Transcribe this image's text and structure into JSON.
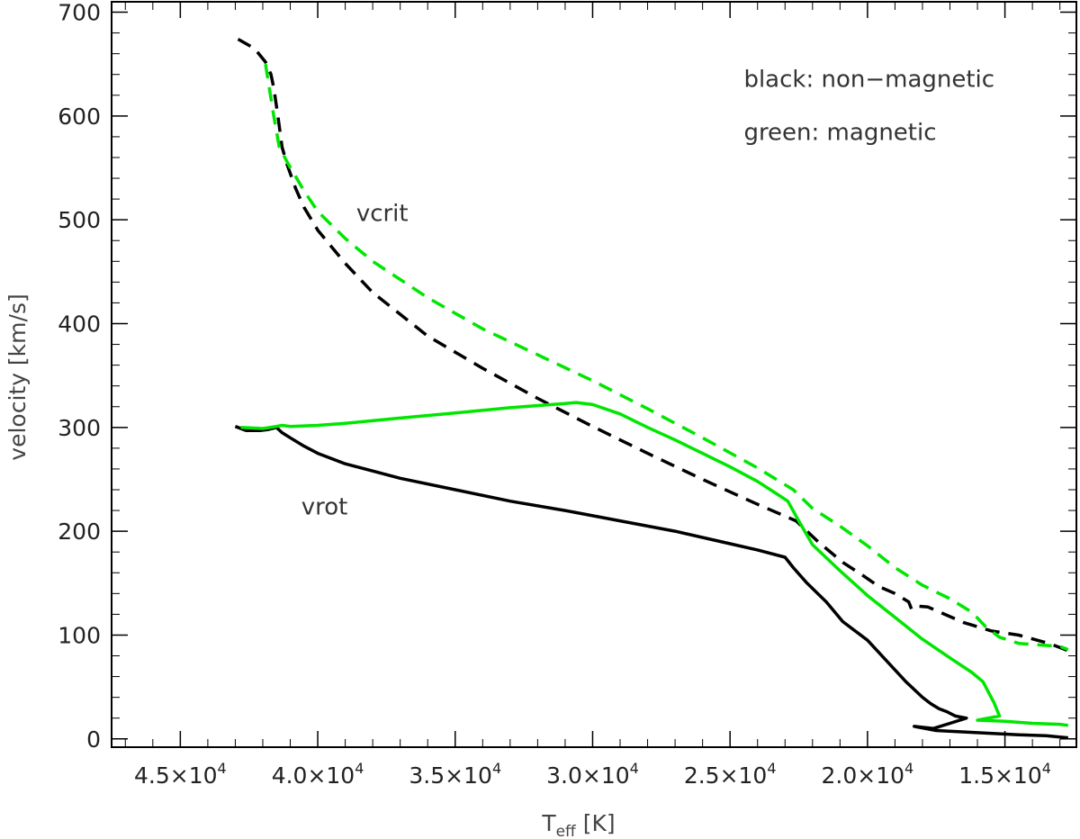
{
  "chart_data": {
    "type": "line",
    "xlabel": "T",
    "xlabel_sub": "eff",
    "xlabel_unit": "[K]",
    "ylabel": "velocity [km/s]",
    "xlim": [
      47500,
      12400
    ],
    "ylim": [
      -8,
      710
    ],
    "x_ticks": [
      {
        "value": 45000,
        "mantissa": "4.5×10",
        "exp": "4"
      },
      {
        "value": 40000,
        "mantissa": "4.0×10",
        "exp": "4"
      },
      {
        "value": 35000,
        "mantissa": "3.5×10",
        "exp": "4"
      },
      {
        "value": 30000,
        "mantissa": "3.0×10",
        "exp": "4"
      },
      {
        "value": 25000,
        "mantissa": "2.5×10",
        "exp": "4"
      },
      {
        "value": 20000,
        "mantissa": "2.0×10",
        "exp": "4"
      },
      {
        "value": 15000,
        "mantissa": "1.5×10",
        "exp": "4"
      }
    ],
    "y_ticks": [
      0,
      100,
      200,
      300,
      400,
      500,
      600,
      700
    ],
    "annotations": [
      {
        "text": "black: non−magnetic",
        "x": 24500,
        "y": 628
      },
      {
        "text": "green: magnetic",
        "x": 24500,
        "y": 577
      },
      {
        "text": "vcrit",
        "x": 38600,
        "y": 499
      },
      {
        "text": "vrot",
        "x": 40600,
        "y": 216
      }
    ],
    "series": [
      {
        "color": "#000000",
        "style": "dashed",
        "x": [
          42900,
          42300,
          41900,
          41700,
          41600,
          41450,
          41300,
          41100,
          40800,
          40500,
          40000,
          39000,
          38000,
          36000,
          34000,
          32000,
          30000,
          28000,
          26000,
          24000,
          22600,
          21800,
          20900,
          20200,
          19600,
          19000,
          18500,
          18400,
          18200,
          17800,
          16500,
          15500,
          14500,
          13400,
          12700
        ],
        "y": [
          674,
          665,
          652,
          640,
          627,
          600,
          570,
          552,
          530,
          512,
          490,
          458,
          430,
          388,
          357,
          328,
          301,
          275,
          250,
          226,
          210,
          190,
          170,
          158,
          147,
          140,
          132,
          125,
          128,
          127,
          112,
          104,
          100,
          92,
          85
        ]
      },
      {
        "color": "#00e600",
        "style": "dashed",
        "x": [
          41900,
          41600,
          41400,
          41100,
          40500,
          40000,
          39000,
          38000,
          36000,
          34000,
          32000,
          30000,
          28000,
          26000,
          24000,
          22700,
          22000,
          21000,
          20000,
          19000,
          18000,
          17000,
          16200,
          15700,
          15200,
          14500,
          13000,
          12700
        ],
        "y": [
          650,
          600,
          570,
          555,
          528,
          508,
          482,
          460,
          425,
          395,
          370,
          345,
          318,
          290,
          261,
          240,
          222,
          205,
          186,
          165,
          148,
          135,
          122,
          108,
          98,
          92,
          89,
          86
        ]
      },
      {
        "color": "#000000",
        "style": "solid",
        "x": [
          43000,
          42600,
          42100,
          41800,
          41500,
          41300,
          41000,
          40500,
          40000,
          39000,
          38000,
          37000,
          35000,
          33000,
          31000,
          29000,
          27000,
          25000,
          24000,
          23000,
          22700,
          22200,
          21500,
          20900,
          20000,
          19300,
          18600,
          18000,
          17700,
          17400,
          17100,
          16800,
          16600,
          16400,
          17000,
          17600,
          18300,
          17500,
          16000,
          14500,
          13500,
          12700
        ],
        "y": [
          301,
          297,
          297,
          298,
          300,
          295,
          290,
          282,
          275,
          265,
          258,
          251,
          240,
          229,
          220,
          210,
          200,
          188,
          182,
          175,
          165,
          150,
          132,
          113,
          95,
          75,
          55,
          40,
          34,
          29,
          26,
          22,
          21,
          20,
          15,
          10,
          12,
          8,
          6,
          4,
          3,
          1
        ]
      },
      {
        "color": "#00e600",
        "style": "solid",
        "x": [
          42800,
          42000,
          41500,
          41300,
          41000,
          40000,
          39000,
          37000,
          35000,
          33000,
          31000,
          30600,
          30000,
          29000,
          28000,
          27000,
          26000,
          25000,
          24000,
          23300,
          22900,
          22500,
          22000,
          21000,
          20000,
          19000,
          18000,
          17000,
          16200,
          15800,
          15600,
          15400,
          15200,
          16000,
          15000,
          14000,
          13000,
          12700
        ],
        "y": [
          300,
          299,
          301,
          302,
          301,
          302,
          304,
          309,
          314,
          319,
          323,
          324,
          322,
          313,
          300,
          288,
          275,
          262,
          248,
          236,
          229,
          210,
          187,
          162,
          138,
          117,
          96,
          78,
          64,
          55,
          45,
          35,
          22,
          18,
          17,
          15,
          14,
          13
        ]
      }
    ]
  }
}
